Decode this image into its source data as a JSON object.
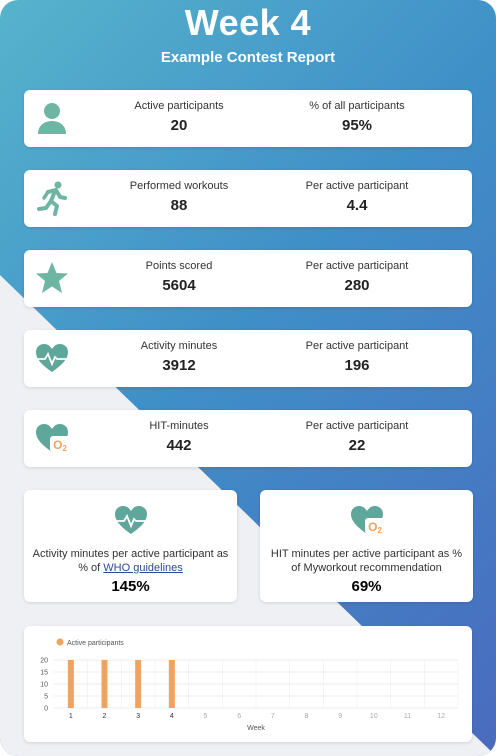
{
  "header": {
    "title": "Week 4",
    "subtitle": "Example Contest Report"
  },
  "cards": [
    {
      "icon": "person-icon",
      "left_label": "Active participants",
      "left_value": "20",
      "right_label": "% of all participants",
      "right_value": "95%"
    },
    {
      "icon": "runner-icon",
      "left_label": "Performed workouts",
      "left_value": "88",
      "right_label": "Per active participant",
      "right_value": "4.4"
    },
    {
      "icon": "star-icon",
      "left_label": "Points scored",
      "left_value": "5604",
      "right_label": "Per active participant",
      "right_value": "280"
    },
    {
      "icon": "heart-pulse-icon",
      "left_label": "Activity minutes",
      "left_value": "3912",
      "right_label": "Per active participant",
      "right_value": "196"
    },
    {
      "icon": "heart-o2-icon",
      "left_label": "HIT-minutes",
      "left_value": "442",
      "right_label": "Per active participant",
      "right_value": "22"
    }
  ],
  "who_card": {
    "label_prefix": "Activity minutes per active participant as % of ",
    "link": "WHO guidelines",
    "value": "145%"
  },
  "hit_card": {
    "label": "HIT minutes per active participant as % of Myworkout recommendation",
    "value": "69%"
  },
  "chart_data": {
    "type": "bar",
    "legend": "Active participants",
    "categories": [
      "1",
      "2",
      "3",
      "4",
      "5",
      "6",
      "7",
      "8",
      "9",
      "10",
      "11",
      "12"
    ],
    "values": [
      20,
      20,
      20,
      20,
      null,
      null,
      null,
      null,
      null,
      null,
      null,
      null
    ],
    "xlabel": "Week",
    "ylim": [
      0,
      20
    ],
    "yticks": [
      "20",
      "15",
      "10",
      "5",
      "0"
    ],
    "color": "#f0a35e"
  },
  "colors": {
    "teal": "#6fb5a3",
    "orange": "#f0a35e",
    "heart": "#5fa69b"
  }
}
